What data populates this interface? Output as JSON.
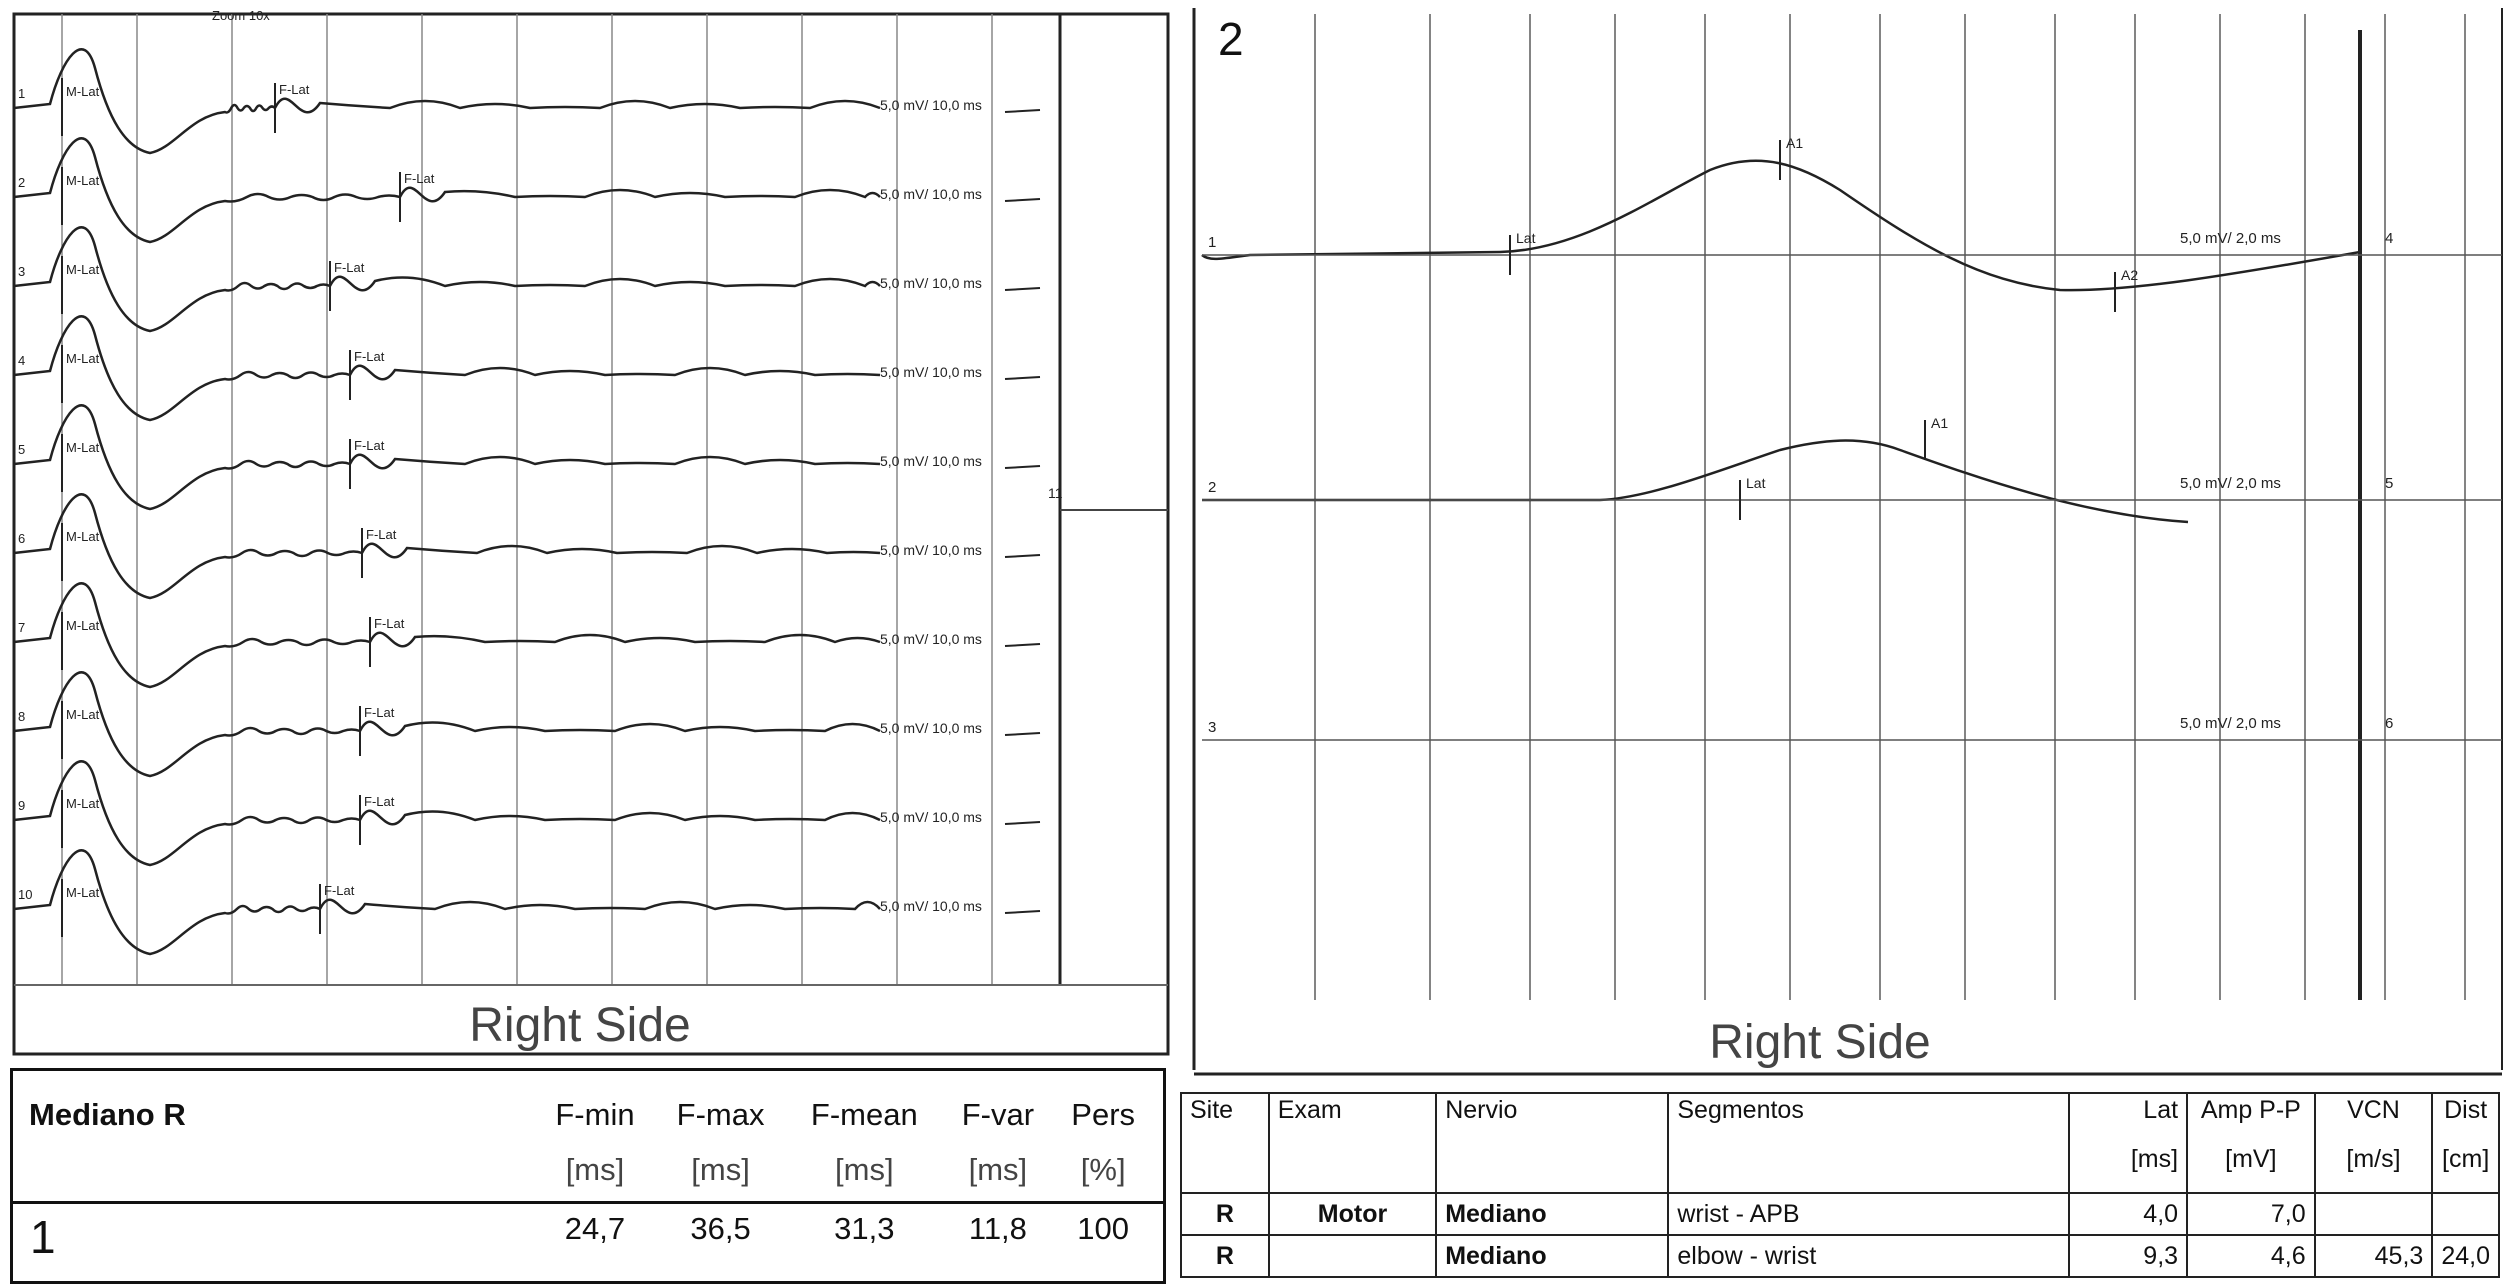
{
  "panel1": {
    "zoom_label": "Zoom 10x",
    "trace_labels": [
      "1",
      "2",
      "3",
      "4",
      "5",
      "6",
      "7",
      "8",
      "9",
      "10"
    ],
    "m_marker": "M-Lat",
    "f_marker": "F-Lat",
    "scale_label": "5,0 mV/ 10,0 ms",
    "marker_11": "11",
    "side_label": "Right Side",
    "panel_number": "1",
    "table": {
      "title": "Mediano R",
      "headers": [
        "F-min",
        "F-max",
        "F-mean",
        "F-var",
        "Pers"
      ],
      "units": [
        "[ms]",
        "[ms]",
        "[ms]",
        "[ms]",
        "[%]"
      ],
      "values": [
        "24,7",
        "36,5",
        "31,3",
        "11,8",
        "100"
      ]
    }
  },
  "panel2": {
    "panel_number": "2",
    "traces": [
      {
        "label": "1",
        "right": "4",
        "scale": "5,0 mV/ 2,0 ms",
        "markers": [
          "Lat",
          "A1",
          "A2"
        ]
      },
      {
        "label": "2",
        "right": "5",
        "scale": "5,0 mV/ 2,0 ms",
        "markers": [
          "Lat",
          "A1"
        ]
      },
      {
        "label": "3",
        "right": "6",
        "scale": "5,0 mV/ 2,0 ms",
        "markers": []
      }
    ],
    "side_label": "Right Side",
    "table": {
      "headers": [
        "Site",
        "Exam",
        "Nervio",
        "Segmentos",
        "Lat",
        "Amp P-P",
        "VCN",
        "Dist"
      ],
      "units": [
        "",
        "",
        "",
        "",
        "[ms]",
        "[mV]",
        "[m/s]",
        "[cm]"
      ],
      "rows": [
        [
          "R",
          "Motor",
          "Mediano",
          "wrist - APB",
          "4,0",
          "7,0",
          "",
          ""
        ],
        [
          "R",
          "",
          "Mediano",
          "elbow - wrist",
          "9,3",
          "4,6",
          "45,3",
          "24,0"
        ]
      ]
    }
  },
  "chart_data": [
    {
      "type": "line",
      "description_source": "F-wave traces, Mediano R",
      "trace_count": 10,
      "scale": "5,0 mV/ 10,0 ms",
      "f_latency_ms": {
        "min": 24.7,
        "max": 36.5,
        "mean": 31.3,
        "var": 11.8,
        "persistence_pct": 100
      }
    },
    {
      "type": "line",
      "traces": [
        {
          "name": "1",
          "scale": "5,0 mV/ 2,0 ms",
          "lat_ms": 4.0,
          "amp_pp_mV": 7.0
        },
        {
          "name": "2",
          "scale": "5,0 mV/ 2,0 ms",
          "lat_ms": 9.3,
          "amp_pp_mV": 4.6,
          "vcn_m_s": 45.3,
          "dist_cm": 24.0
        },
        {
          "name": "3",
          "scale": "5,0 mV/ 2,0 ms"
        }
      ]
    }
  ]
}
